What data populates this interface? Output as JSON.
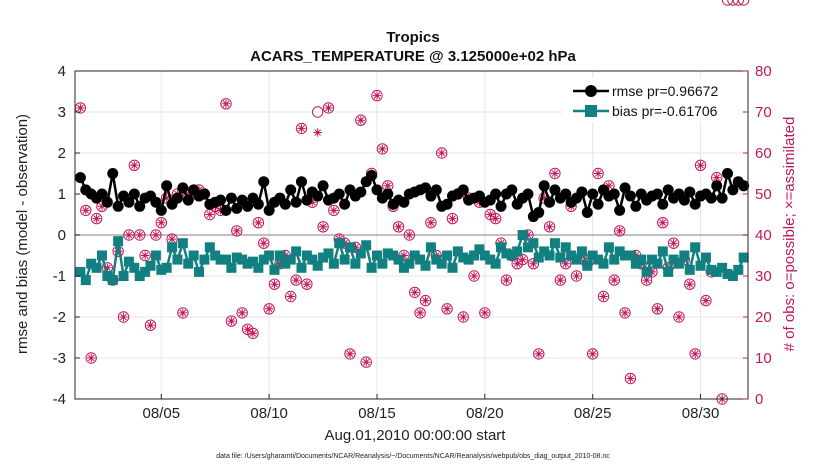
{
  "chart_data": {
    "type": "line",
    "title": "Tropics",
    "subtitle": "ACARS_TEMPERATURE @ 3.125000e+02 hPa",
    "xlabel": "Aug.01,2010 00:00:00 start",
    "ylabel": "rmse and bias (model - observation)",
    "y2label": "# of obs: o=possible; ×=assimilated",
    "footer": "data file: /Users/gharamti/Documents/NCAR/Reanalysis/~/Documents/NCAR/Reanalysis/webpub/obs_diag_output_2010-08.nc",
    "ylim": [
      -4,
      4
    ],
    "y2lim": [
      0,
      80
    ],
    "xlim": [
      1.0,
      32.2
    ],
    "yticks": [
      "-4",
      "-3",
      "-2",
      "-1",
      "0",
      "1",
      "2",
      "3",
      "4"
    ],
    "y2ticks": [
      "0",
      "10",
      "20",
      "30",
      "40",
      "50",
      "60",
      "70",
      "80"
    ],
    "xticks": [
      {
        "day": 5,
        "label": "08/05"
      },
      {
        "day": 10,
        "label": "08/10"
      },
      {
        "day": 15,
        "label": "08/15"
      },
      {
        "day": 20,
        "label": "08/20"
      },
      {
        "day": 25,
        "label": "08/25"
      },
      {
        "day": 30,
        "label": "08/30"
      }
    ],
    "grid": true,
    "legend_position": "top-right",
    "colors": {
      "rmse": "#000000",
      "bias": "#128080",
      "counts": "#c2185b",
      "zero_line": "#aaaaaa",
      "grid": "#e6e6e6"
    },
    "series": [
      {
        "name": "rmse pr=0.96672",
        "marker": "circle",
        "x": [
          1.25,
          1.5,
          1.75,
          2.0,
          2.25,
          2.5,
          2.75,
          3.0,
          3.25,
          3.5,
          3.75,
          4.0,
          4.25,
          4.5,
          4.75,
          5.0,
          5.25,
          5.5,
          5.75,
          6.0,
          6.25,
          6.5,
          6.75,
          7.0,
          7.25,
          7.5,
          7.75,
          8.0,
          8.25,
          8.5,
          8.75,
          9.0,
          9.25,
          9.5,
          9.75,
          10.0,
          10.25,
          10.5,
          10.75,
          11.0,
          11.25,
          11.5,
          11.75,
          12.0,
          12.25,
          12.5,
          12.75,
          13.0,
          13.25,
          13.5,
          13.75,
          14.0,
          14.25,
          14.5,
          14.75,
          15.0,
          15.25,
          15.5,
          15.75,
          16.0,
          16.25,
          16.5,
          16.75,
          17.0,
          17.25,
          17.5,
          17.75,
          18.0,
          18.25,
          18.5,
          18.75,
          19.0,
          19.25,
          19.5,
          19.75,
          20.0,
          20.25,
          20.5,
          20.75,
          21.0,
          21.25,
          21.5,
          21.75,
          22.0,
          22.25,
          22.5,
          22.75,
          23.0,
          23.25,
          23.5,
          23.75,
          24.0,
          24.25,
          24.5,
          24.75,
          25.0,
          25.25,
          25.5,
          25.75,
          26.0,
          26.25,
          26.5,
          26.75,
          27.0,
          27.25,
          27.5,
          27.75,
          28.0,
          28.25,
          28.5,
          28.75,
          29.0,
          29.25,
          29.5,
          29.75,
          30.0,
          30.25,
          30.5,
          30.75,
          31.0,
          31.25,
          31.5,
          31.75,
          32.0
        ],
        "values": [
          1.4,
          1.1,
          1.0,
          0.9,
          1.0,
          0.8,
          1.5,
          0.7,
          0.95,
          0.8,
          1.0,
          0.7,
          0.9,
          0.95,
          0.8,
          0.6,
          1.2,
          0.75,
          0.9,
          1.15,
          0.85,
          1.1,
          0.95,
          1.0,
          0.75,
          0.8,
          0.85,
          0.6,
          0.9,
          0.65,
          0.85,
          0.7,
          0.9,
          0.75,
          1.3,
          0.6,
          0.8,
          0.9,
          0.75,
          1.1,
          0.8,
          1.3,
          0.85,
          1.05,
          0.95,
          1.2,
          0.85,
          0.9,
          1.0,
          0.75,
          1.1,
          0.95,
          1.05,
          1.3,
          1.45,
          1.1,
          0.9,
          1.0,
          0.75,
          0.85,
          0.8,
          1.0,
          1.05,
          1.1,
          1.15,
          0.95,
          1.1,
          0.7,
          0.75,
          0.95,
          1.0,
          1.1,
          0.85,
          0.9,
          0.95,
          0.8,
          0.85,
          1.0,
          0.7,
          1.0,
          1.1,
          0.75,
          0.9,
          1.0,
          0.45,
          0.55,
          1.2,
          0.8,
          1.1,
          0.9,
          1.0,
          0.8,
          0.9,
          1.05,
          0.55,
          1.0,
          0.75,
          1.1,
          0.95,
          1.0,
          0.6,
          1.15,
          0.95,
          0.7,
          1.0,
          0.85,
          0.95,
          1.0,
          0.75,
          1.1,
          0.9,
          1.0,
          0.85,
          1.05,
          0.75,
          0.95,
          1.0,
          0.9,
          1.2,
          0.9,
          1.5,
          1.1,
          1.3,
          1.2
        ]
      },
      {
        "name": "bias pr=-0.61706",
        "marker": "square",
        "x": [
          1.25,
          1.5,
          1.75,
          2.0,
          2.25,
          2.5,
          2.75,
          3.0,
          3.25,
          3.5,
          3.75,
          4.0,
          4.25,
          4.5,
          4.75,
          5.0,
          5.25,
          5.5,
          5.75,
          6.0,
          6.25,
          6.5,
          6.75,
          7.0,
          7.25,
          7.5,
          7.75,
          8.0,
          8.25,
          8.5,
          8.75,
          9.0,
          9.25,
          9.5,
          9.75,
          10.0,
          10.25,
          10.5,
          10.75,
          11.0,
          11.25,
          11.5,
          11.75,
          12.0,
          12.25,
          12.5,
          12.75,
          13.0,
          13.25,
          13.5,
          13.75,
          14.0,
          14.25,
          14.5,
          14.75,
          15.0,
          15.25,
          15.5,
          15.75,
          16.0,
          16.25,
          16.5,
          16.75,
          17.0,
          17.25,
          17.5,
          17.75,
          18.0,
          18.25,
          18.5,
          18.75,
          19.0,
          19.25,
          19.5,
          19.75,
          20.0,
          20.25,
          20.5,
          20.75,
          21.0,
          21.25,
          21.5,
          21.75,
          22.0,
          22.25,
          22.5,
          22.75,
          23.0,
          23.25,
          23.5,
          23.75,
          24.0,
          24.25,
          24.5,
          24.75,
          25.0,
          25.25,
          25.5,
          25.75,
          26.0,
          26.25,
          26.5,
          26.75,
          27.0,
          27.25,
          27.5,
          27.75,
          28.0,
          28.25,
          28.5,
          28.75,
          29.0,
          29.25,
          29.5,
          29.75,
          30.0,
          30.25,
          30.5,
          30.75,
          31.0,
          31.25,
          31.5,
          31.75,
          32.0
        ],
        "values": [
          -0.9,
          -1.1,
          -0.7,
          -0.8,
          -0.5,
          -1.0,
          -1.1,
          -0.15,
          -1.0,
          -0.65,
          -0.8,
          -1.0,
          -0.9,
          -0.75,
          -0.5,
          -0.85,
          -0.8,
          -0.3,
          -0.6,
          -0.2,
          -0.7,
          -0.5,
          -0.9,
          -0.6,
          -0.3,
          -0.5,
          -0.6,
          -0.6,
          -0.8,
          -0.55,
          -0.6,
          -0.7,
          -0.65,
          -0.8,
          -0.6,
          -0.5,
          -0.85,
          -0.5,
          -0.7,
          -0.6,
          -0.4,
          -0.8,
          -0.5,
          -0.6,
          -0.75,
          -0.55,
          -0.45,
          -0.7,
          -0.2,
          -0.6,
          -0.3,
          -0.7,
          -0.45,
          -0.25,
          -0.8,
          -0.5,
          -0.7,
          -0.45,
          -0.5,
          -0.6,
          -0.8,
          -0.7,
          -0.5,
          -0.6,
          -0.75,
          -0.3,
          -0.6,
          -0.7,
          -0.5,
          -0.8,
          -0.4,
          -0.55,
          -0.6,
          -0.5,
          -0.35,
          -0.5,
          -0.6,
          -0.7,
          -0.3,
          -0.45,
          -0.5,
          -0.4,
          0.0,
          -0.3,
          -0.2,
          -0.55,
          -0.4,
          -0.5,
          -0.2,
          -0.55,
          -0.3,
          -0.5,
          -0.6,
          -0.4,
          -0.75,
          -0.5,
          -0.6,
          -0.7,
          -0.3,
          -0.6,
          -0.4,
          -0.5,
          -0.5,
          -0.7,
          -0.6,
          -0.9,
          -0.6,
          -0.7,
          -0.4,
          -0.9,
          -0.6,
          -0.7,
          -0.5,
          -0.85,
          -0.3,
          -0.75,
          -0.55,
          -0.85,
          -0.9,
          -0.8,
          -0.95,
          -1.0,
          -0.85,
          -0.55
        ]
      },
      {
        "name": "# of obs",
        "axis": "right",
        "marker": "circle-star",
        "x": [
          1.25,
          1.5,
          1.75,
          2.0,
          2.25,
          2.5,
          2.75,
          3.0,
          3.25,
          3.5,
          3.75,
          4.0,
          4.25,
          4.5,
          4.75,
          5.0,
          5.25,
          5.5,
          5.75,
          6.0,
          6.25,
          6.5,
          6.75,
          7.0,
          7.25,
          7.5,
          7.75,
          8.0,
          8.25,
          8.5,
          8.75,
          9.0,
          9.25,
          9.5,
          9.75,
          10.0,
          10.25,
          10.5,
          10.75,
          11.0,
          11.25,
          11.5,
          11.75,
          12.0,
          12.25,
          12.5,
          12.75,
          13.0,
          13.25,
          13.5,
          13.75,
          14.0,
          14.25,
          14.5,
          14.75,
          15.0,
          15.25,
          15.5,
          15.75,
          16.0,
          16.25,
          16.5,
          16.75,
          17.0,
          17.25,
          17.5,
          17.75,
          18.0,
          18.25,
          18.5,
          18.75,
          19.0,
          19.25,
          19.5,
          19.75,
          20.0,
          20.25,
          20.5,
          20.75,
          21.0,
          21.25,
          21.5,
          21.75,
          22.0,
          22.25,
          22.5,
          22.75,
          23.0,
          23.25,
          23.5,
          23.75,
          24.0,
          24.25,
          24.5,
          24.75,
          25.0,
          25.25,
          25.5,
          25.75,
          26.0,
          26.25,
          26.5,
          26.75,
          27.0,
          27.25,
          27.5,
          27.75,
          28.0,
          28.25,
          28.5,
          28.75,
          29.0,
          29.25,
          29.5,
          29.75,
          30.0,
          30.25,
          30.5,
          30.75,
          31.0,
          31.25,
          31.5,
          31.75,
          32.0
        ],
        "possible": [
          71,
          46,
          10,
          44,
          47,
          32,
          29,
          36,
          20,
          40,
          57,
          40,
          35,
          18,
          40,
          43,
          49,
          39,
          50,
          21,
          50,
          50,
          51,
          50,
          45,
          47,
          46,
          72,
          19,
          41,
          21,
          17,
          16,
          43,
          38,
          22,
          28,
          33,
          35,
          25,
          29,
          66,
          28,
          48,
          70,
          42,
          71,
          46,
          39,
          38,
          11,
          37,
          68,
          9,
          55,
          74,
          61,
          52,
          47,
          42,
          35,
          40,
          26,
          21,
          24,
          43,
          35,
          60,
          22,
          44,
          50,
          20,
          49,
          30,
          48,
          21,
          45,
          44,
          38,
          29,
          35,
          33,
          34,
          40,
          33,
          11,
          49,
          42,
          55,
          29,
          33,
          47,
          30,
          35,
          33,
          11,
          55,
          25,
          52,
          29,
          41,
          21,
          5,
          35,
          33,
          29,
          31,
          22,
          43,
          32,
          38,
          20,
          34,
          28,
          11,
          57,
          24,
          31,
          54,
          0
        ],
        "assimilated": [
          71,
          46,
          10,
          44,
          47,
          32,
          29,
          36,
          20,
          40,
          57,
          40,
          35,
          18,
          40,
          43,
          49,
          39,
          50,
          21,
          50,
          50,
          51,
          50,
          45,
          47,
          46,
          72,
          19,
          41,
          21,
          17,
          16,
          43,
          38,
          22,
          28,
          33,
          35,
          25,
          29,
          66,
          28,
          48,
          65,
          42,
          71,
          46,
          39,
          38,
          11,
          37,
          68,
          9,
          55,
          74,
          61,
          52,
          47,
          42,
          35,
          40,
          26,
          21,
          24,
          43,
          35,
          60,
          22,
          44,
          50,
          20,
          49,
          30,
          48,
          21,
          45,
          44,
          38,
          29,
          35,
          33,
          34,
          40,
          33,
          11,
          49,
          42,
          55,
          29,
          33,
          47,
          30,
          35,
          33,
          11,
          55,
          25,
          52,
          29,
          41,
          21,
          5,
          35,
          33,
          29,
          31,
          22,
          43,
          32,
          38,
          20,
          34,
          28,
          11,
          57,
          24,
          31,
          54,
          0
        ]
      }
    ]
  }
}
